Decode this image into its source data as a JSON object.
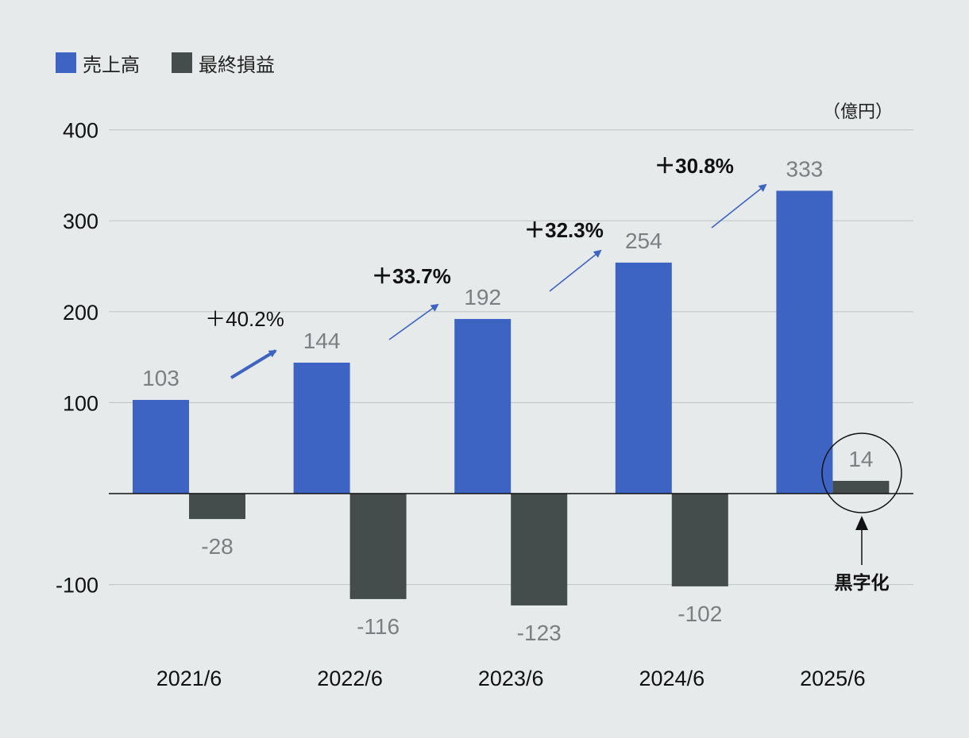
{
  "chart_data": {
    "type": "bar",
    "unit_label": "（億円）",
    "categories": [
      "2021/6",
      "2022/6",
      "2023/6",
      "2024/6",
      "2025/6"
    ],
    "series": [
      {
        "name": "売上高",
        "color": "#3d64c2",
        "values": [
          103,
          144,
          192,
          254,
          333
        ],
        "labels": [
          "103",
          "144",
          "192",
          "254",
          "333"
        ]
      },
      {
        "name": "最終損益",
        "color": "#454d4c",
        "values": [
          -28,
          -116,
          -123,
          -102,
          14
        ],
        "labels": [
          "-28",
          "-116",
          "-123",
          "-102",
          "14"
        ]
      }
    ],
    "ylim": [
      -100,
      400
    ],
    "yticks": [
      400,
      300,
      200,
      100,
      -100
    ],
    "ytick_labels": [
      "400",
      "300",
      "200",
      "100",
      "-100"
    ],
    "growth_labels": [
      "＋40.2%",
      "＋33.7%",
      "＋32.3%",
      "＋30.8%"
    ],
    "annotation": {
      "text": "黒字化"
    },
    "arrow_color": "#3d64c2",
    "circle_color": "#111111"
  }
}
